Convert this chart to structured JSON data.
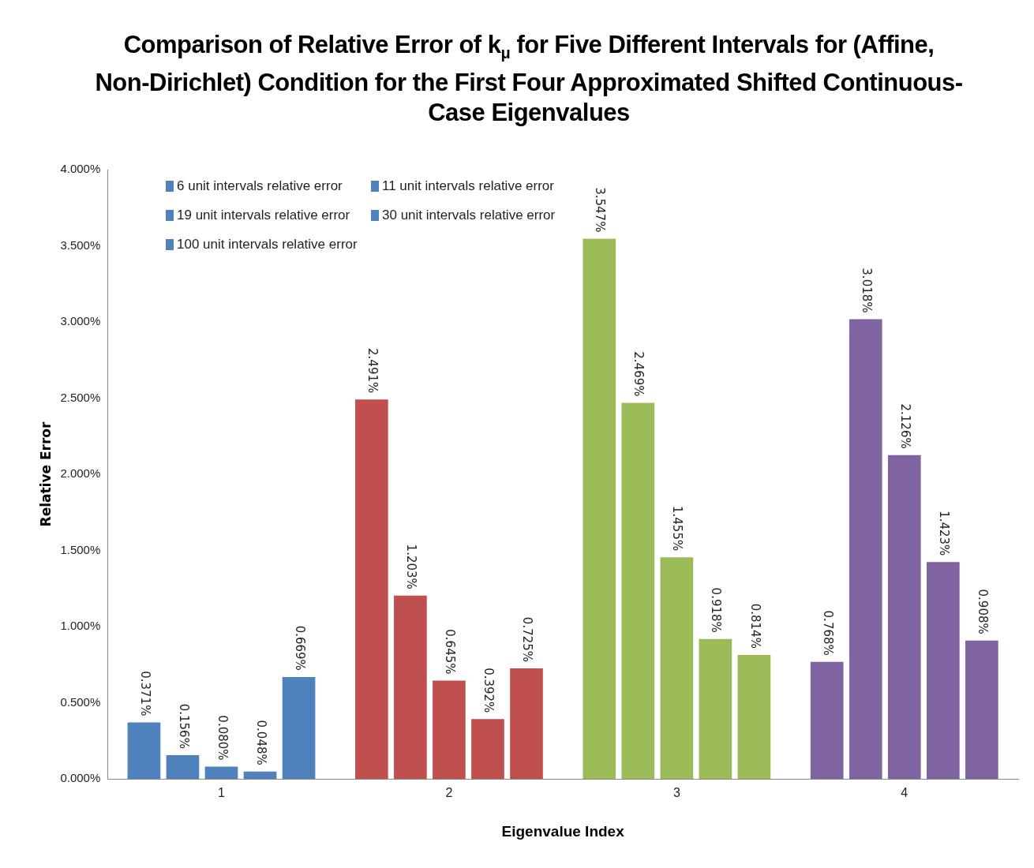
{
  "chart_data": {
    "type": "bar",
    "title": "Comparison of Relative Error of k$_{μ}$ for Five Different Intervals for (Affine, Non-Dirichlet) Condition for the First Four Approximated Shifted Continuous-Case Eigenvalues",
    "xlabel": "Eigenvalue Index",
    "ylabel": "Relative Error",
    "categories": [
      "1",
      "2",
      "3",
      "4"
    ],
    "series": [
      {
        "name": "6 unit intervals relative error",
        "colors": [
          "#4f81bd",
          "#c0504d",
          "#9bbb59",
          "#8064a2"
        ],
        "values": [
          0.371,
          2.491,
          3.547,
          0.768
        ],
        "value_labels": [
          "0.371%",
          "2.491%",
          "3.547%",
          "0.768%"
        ]
      },
      {
        "name": "11 unit intervals relative error",
        "colors": [
          "#4f81bd",
          "#c0504d",
          "#9bbb59",
          "#8064a2"
        ],
        "values": [
          0.156,
          1.203,
          2.469,
          3.018
        ],
        "value_labels": [
          "0.156%",
          "1.203%",
          "2.469%",
          "3.018%"
        ]
      },
      {
        "name": "19 unit intervals relative error",
        "colors": [
          "#4f81bd",
          "#c0504d",
          "#9bbb59",
          "#8064a2"
        ],
        "values": [
          0.08,
          0.645,
          1.455,
          2.126
        ],
        "value_labels": [
          "0.080%",
          "0.645%",
          "1.455%",
          "2.126%"
        ]
      },
      {
        "name": "30 unit intervals relative error",
        "colors": [
          "#4f81bd",
          "#c0504d",
          "#9bbb59",
          "#8064a2"
        ],
        "values": [
          0.048,
          0.392,
          0.918,
          1.423
        ],
        "value_labels": [
          "0.048%",
          "0.392%",
          "0.918%",
          "1.423%"
        ]
      },
      {
        "name": "100 unit intervals relative error",
        "colors": [
          "#4f81bd",
          "#c0504d",
          "#9bbb59",
          "#8064a2"
        ],
        "values": [
          0.669,
          0.725,
          0.814,
          0.908
        ],
        "value_labels": [
          "0.669%",
          "0.725%",
          "0.814%",
          "0.908%"
        ]
      }
    ],
    "ylim": [
      0,
      4
    ],
    "yticks": [
      {
        "value": 0,
        "label": "0.000%"
      },
      {
        "value": 0.5,
        "label": "0.500%"
      },
      {
        "value": 1,
        "label": "1.000%"
      },
      {
        "value": 1.5,
        "label": "1.500%"
      },
      {
        "value": 2,
        "label": "2.000%"
      },
      {
        "value": 2.5,
        "label": "2.500%"
      },
      {
        "value": 3,
        "label": "3.000%"
      },
      {
        "value": 3.5,
        "label": "3.500%"
      },
      {
        "value": 4,
        "label": "4.000%"
      }
    ],
    "grid": false,
    "legend": "top left"
  }
}
